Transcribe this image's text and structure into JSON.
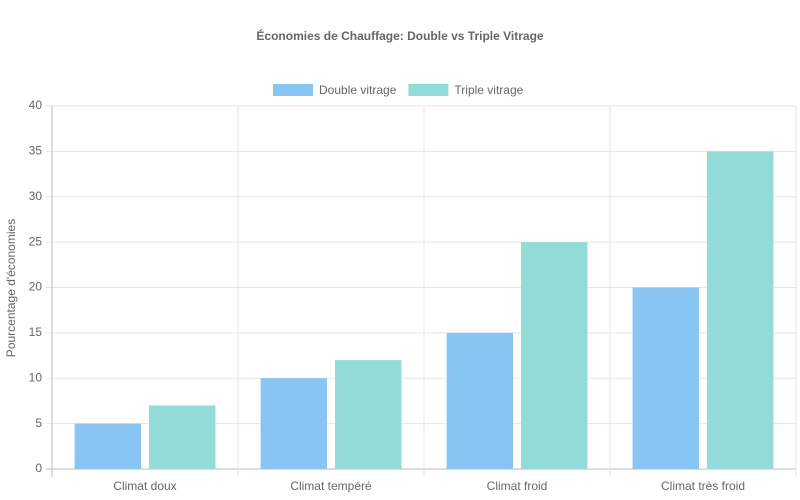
{
  "chart_data": {
    "type": "bar",
    "title": "Économies de Chauffage: Double vs Triple Vitrage",
    "categories": [
      "Climat doux",
      "Climat tempéré",
      "Climat froid",
      "Climat très froid"
    ],
    "series": [
      {
        "name": "Double vitrage",
        "color": "#88c5f2",
        "values": [
          5,
          10,
          15,
          20
        ]
      },
      {
        "name": "Triple vitrage",
        "color": "#93dbd6",
        "values": [
          7,
          12,
          25,
          35
        ]
      }
    ],
    "y_label": "Pourcentage d'économies",
    "ylim": [
      0,
      40
    ],
    "yticks": [
      0,
      5,
      10,
      15,
      20,
      25,
      30,
      35,
      40
    ],
    "grid": true,
    "legend": "top"
  }
}
